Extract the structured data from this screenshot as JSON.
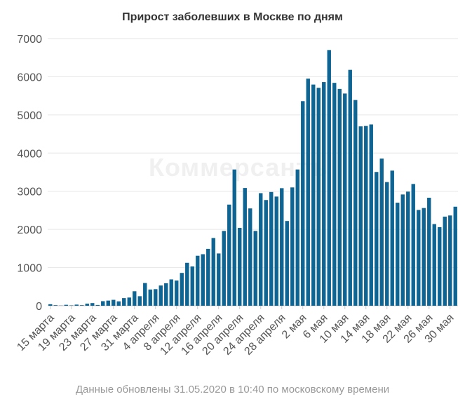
{
  "chart_data": {
    "type": "bar",
    "title": "Прирост заболевших в Москве по дням",
    "xlabel": "",
    "ylabel": "",
    "ylim": [
      0,
      7000
    ],
    "yticks": [
      0,
      1000,
      2000,
      3000,
      4000,
      5000,
      6000,
      7000
    ],
    "grid": true,
    "bar_color": "#0e6594",
    "x_tick_labels": [
      "15 марта",
      "19 марта",
      "23 марта",
      "27 марта",
      "31 марта",
      "4 апреля",
      "8 апреля",
      "12 апреля",
      "16 апреля",
      "20 апреля",
      "24 апреля",
      "28 апреля",
      "2 мая",
      "6 мая",
      "10 мая",
      "14 мая",
      "18 мая",
      "22 мая",
      "26 мая",
      "30 мая"
    ],
    "x_tick_every": 4,
    "values": [
      40,
      15,
      5,
      25,
      10,
      30,
      15,
      55,
      70,
      20,
      120,
      135,
      155,
      115,
      200,
      215,
      380,
      250,
      595,
      425,
      435,
      530,
      590,
      690,
      660,
      860,
      1125,
      1030,
      1310,
      1350,
      1490,
      1775,
      1370,
      1960,
      2650,
      3570,
      2040,
      3085,
      2550,
      1960,
      2950,
      2770,
      2980,
      2860,
      3080,
      2220,
      3100,
      3570,
      5360,
      5950,
      5795,
      5710,
      5860,
      6700,
      5840,
      5680,
      5560,
      6180,
      5390,
      4700,
      4710,
      4750,
      3505,
      3855,
      3240,
      3540,
      2700,
      2915,
      2990,
      3190,
      2510,
      2560,
      2830,
      2140,
      2060,
      2335,
      2365,
      2595
    ]
  },
  "watermark": "Коммерсантъ",
  "footer": "Данные обновлены 31.05.2020 в 10:40 по московскому времени"
}
